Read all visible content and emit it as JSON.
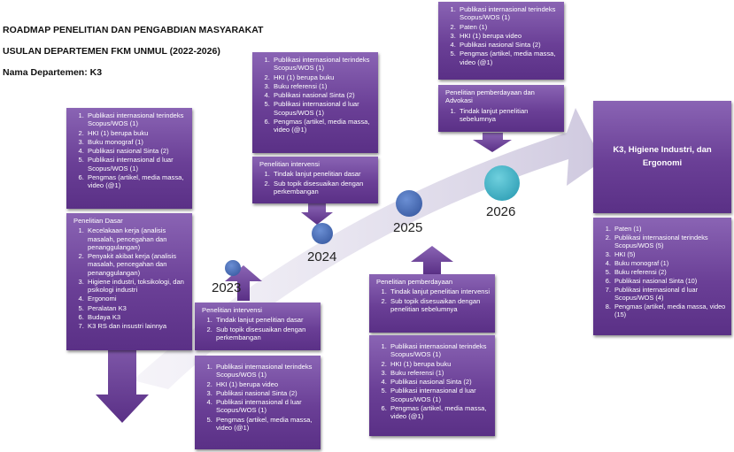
{
  "header": {
    "line1": "ROADMAP PENELITIAN DAN PENGABDIAN MASYARAKAT",
    "line2": "USULAN DEPARTEMEN FKM UNMUL (2022-2026)",
    "line3": "Nama Departemen: K3"
  },
  "years": [
    "2023",
    "2024",
    "2025",
    "2026"
  ],
  "colors": {
    "box": "#6a3f96",
    "band": "#d9d5e6",
    "node": "#4a6fb4",
    "node_last": "#45b4c8"
  },
  "left": {
    "outputs": [
      "Publikasi internasional terindeks Scopus/WOS (1)",
      "HKI (1) berupa buku",
      "Buku monograf (1)",
      "Publikasi nasional Sinta (2)",
      "Publikasi internasional d luar Scopus/WOS (1)",
      "Pengmas (artikel, media massa, video (@1)"
    ],
    "title": "Penelitian Dasar",
    "topics": [
      "Kecelakaan kerja (analisis masalah, pencegahan dan penanggulangan)",
      "Penyakit akibat kerja (analisis masalah, pencegahan  dan penanggulangan)",
      "Higiene industri, toksikologi, dan psikologi industri",
      "Ergonomi",
      "Peralatan K3",
      "Budaya K3",
      "K3 RS dan insustri lainnya"
    ]
  },
  "y2023": {
    "title": "Penelitian intervensi",
    "topics": [
      "Tindak lanjut penelitian dasar",
      "Sub topik disesuaikan dengan perkembangan"
    ],
    "outputs": [
      "Publikasi internasional terindeks Scopus/WOS (1)",
      "HKI (1) berupa video",
      "Publikasi nasional Sinta (2)",
      "Publikasi internasional d luar Scopus/WOS (1)",
      "Pengmas (artikel, media massa, video (@1)"
    ]
  },
  "y2024": {
    "outputs": [
      "Publikasi internasional terindeks Scopus/WOS (1)",
      "HKI (1) berupa buku",
      "Buku referensi (1)",
      "Publikasi nasional Sinta (2)",
      "Publikasi internasional d luar Scopus/WOS (1)",
      "Pengmas (artikel, media massa, video (@1)"
    ],
    "title": "Penelitian intervensi",
    "topics": [
      "Tindak lanjut penelitian dasar",
      "Sub topik disesuaikan dengan perkembangan"
    ]
  },
  "y2025": {
    "title": "Penelitian pemberdayaan",
    "topics": [
      "Tindak lanjut penelitian intervensi",
      "Sub topik disesuaikan dengan penelitian sebelumnya"
    ],
    "outputs": [
      "Publikasi internasional terindeks Scopus/WOS (1)",
      "HKI (1) berupa buku",
      "Buku referensi (1)",
      "Publikasi nasional Sinta (2)",
      "Publikasi internasional d luar Scopus/WOS (1)",
      "Pengmas (artikel, media massa, video (@1)"
    ]
  },
  "y2026": {
    "outputs": [
      "Publikasi internasional terindeks Scopus/WOS (1)",
      "Paten (1)",
      "HKI (1) berupa video",
      "Publikasi nasional Sinta (2)",
      "Pengmas (artikel, media massa, video (@1)"
    ],
    "title": "Penelitian pemberdayaan dan Advokasi",
    "topics": [
      "Tindak lanjut penelitian sebelumnya"
    ]
  },
  "goal": {
    "title": "K3, Higiene Industri, dan Ergonomi",
    "outputs": [
      "Paten (1)",
      "Publikasi internasional terindeks Scopus/WOS (5)",
      "HKI (5)",
      "Buku monograf (1)",
      "Buku referensi (2)",
      "Publikasi nasional Sinta (10)",
      "Publikasi internasional d luar Scopus/WOS (4)",
      "Pengmas (artikel, media massa, video (15)"
    ]
  }
}
